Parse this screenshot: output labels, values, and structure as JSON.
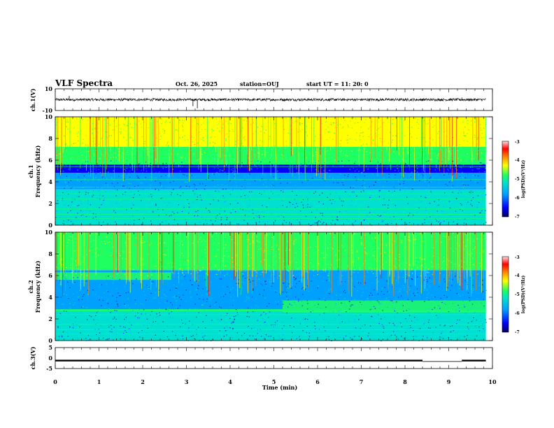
{
  "header": {
    "title": "VLF Spectra",
    "date": "Oct. 26, 2025",
    "station": "station=OUJ",
    "start_ut": "start  UT  =   11: 20: 0"
  },
  "chart_data": [
    {
      "type": "line",
      "name": "ch1-waveform",
      "ylabel": "ch.1(V)",
      "ylim": [
        -10,
        10
      ],
      "y_tick_labels": [
        "10",
        "-10"
      ],
      "baseline_value": 0,
      "noise_band": [
        -1.2,
        1.2
      ],
      "spikes": [
        {
          "t": 0.32,
          "v": 3.5
        },
        {
          "t": 3.15,
          "v": -6
        },
        {
          "t": 3.25,
          "v": -8
        },
        {
          "t": 9.3,
          "v": 2
        }
      ]
    },
    {
      "type": "heatmap",
      "name": "ch1-spectrogram",
      "ylabel_top": "ch.1",
      "ylabel": "Frequency (kHz)",
      "ylim": [
        0,
        10
      ],
      "y_tick_labels": [
        "0",
        "2",
        "4",
        "6",
        "8",
        "10"
      ],
      "colorbar": {
        "label": "log(PSD)(V²/Hz)",
        "range": [
          -7,
          -3
        ],
        "tick_labels": [
          "-3",
          "-4",
          "-5",
          "-6",
          "-7"
        ]
      },
      "bands": [
        {
          "from": 0.0,
          "to": 3.3,
          "level": -5.6
        },
        {
          "from": 3.3,
          "to": 4.8,
          "level": -6.0
        },
        {
          "from": 4.8,
          "to": 5.6,
          "level": -6.6
        },
        {
          "from": 5.6,
          "to": 7.2,
          "level": -5.2
        },
        {
          "from": 7.2,
          "to": 10.0,
          "level": -4.6
        }
      ],
      "feature_lines_khz": [
        0.6,
        1.0,
        1.5,
        2.4,
        2.9,
        3.5,
        4.2,
        4.8,
        5.4,
        6.9,
        7.2
      ]
    },
    {
      "type": "heatmap",
      "name": "ch2-spectrogram",
      "ylabel_top": "ch.2",
      "ylabel": "Frequency (kHz)",
      "ylim": [
        0,
        10
      ],
      "y_tick_labels": [
        "0",
        "2",
        "4",
        "6",
        "8",
        "10"
      ],
      "colorbar": {
        "label": "log(PSD)(V²/Hz)",
        "range": [
          -7,
          -3
        ],
        "tick_labels": [
          "-3",
          "-4",
          "-5",
          "-6",
          "-7"
        ]
      },
      "bands": [
        {
          "from": 0.0,
          "to": 2.8,
          "level": -5.5
        },
        {
          "from": 2.8,
          "to": 6.5,
          "level": -6.0
        },
        {
          "from": 6.5,
          "to": 10.0,
          "level": -4.8
        }
      ],
      "features": [
        {
          "t0": 0.0,
          "t1": 2.65,
          "f0": 5.6,
          "f1": 6.3,
          "level": -5.0
        },
        {
          "t0": 0.0,
          "t1": 5.2,
          "f0": 2.7,
          "f1": 2.9,
          "level": -5.0
        },
        {
          "t0": 5.2,
          "t1": 9.85,
          "f0": 2.6,
          "f1": 3.7,
          "level": -5.0
        }
      ],
      "feature_lines_khz": [
        0.6,
        1.0,
        1.5,
        2.4,
        6.8
      ]
    },
    {
      "type": "line",
      "name": "ch3-waveform",
      "ylabel": "ch.3(V)",
      "ylim": [
        -5,
        5
      ],
      "y_tick_labels": [
        "5",
        "0",
        "-5"
      ],
      "segments": [
        {
          "t0": 0.0,
          "t1": 8.4,
          "v": -1.2,
          "band": 0.4
        },
        {
          "t0": 8.4,
          "t1": 9.3,
          "v": -1.6,
          "band": 0.1
        },
        {
          "t0": 9.3,
          "t1": 9.85,
          "v": -1.2,
          "band": 0.4
        }
      ]
    }
  ],
  "x_axis": {
    "xlabel": "Time (min)",
    "xlim": [
      0,
      10
    ],
    "tick_labels": [
      "0",
      "1",
      "2",
      "3",
      "4",
      "5",
      "6",
      "7",
      "8",
      "9",
      "10"
    ],
    "data_end_min": 9.85
  },
  "colors": {
    "axis": "#000000",
    "colormap": [
      "#00007a",
      "#0000ff",
      "#00a0ff",
      "#00e0d0",
      "#20ff60",
      "#ffff00",
      "#ff8000",
      "#ff0000",
      "#ffd0d0"
    ]
  }
}
